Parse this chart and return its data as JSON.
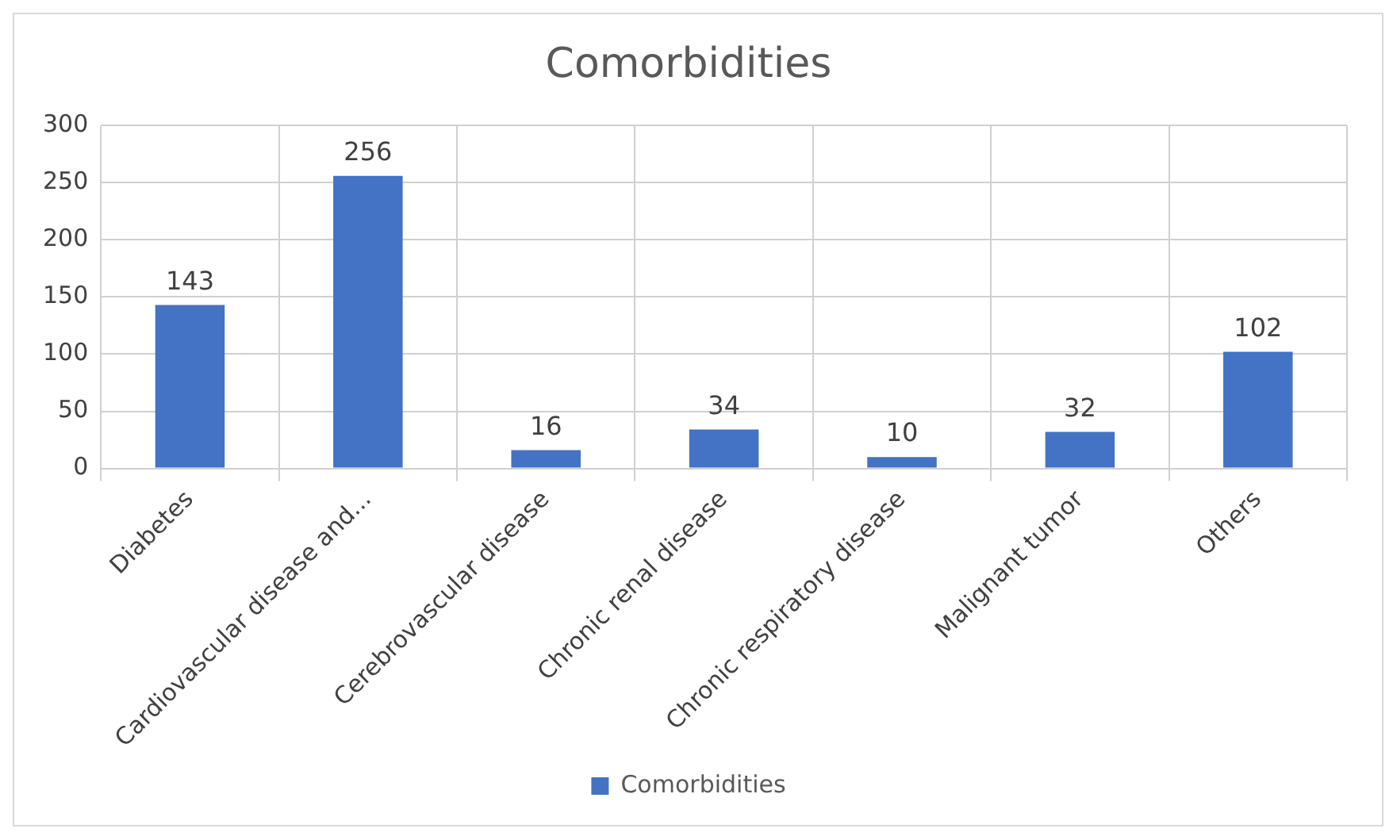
{
  "chart_data": {
    "type": "bar",
    "title": "Comorbidities",
    "categories": [
      "Diabetes",
      "Cardiovascular disease and...",
      "Cerebrovascular disease",
      "Chronic renal disease",
      "Chronic respiratory disease",
      "Malignant tumor",
      "Others"
    ],
    "series": [
      {
        "name": "Comorbidities",
        "color": "#4472c4",
        "values": [
          143,
          256,
          16,
          34,
          10,
          32,
          102
        ]
      }
    ],
    "ylim": [
      0,
      300
    ],
    "yticks": [
      0,
      50,
      100,
      150,
      200,
      250,
      300
    ],
    "grid": true,
    "legend": "bottom",
    "data_labels": true
  }
}
